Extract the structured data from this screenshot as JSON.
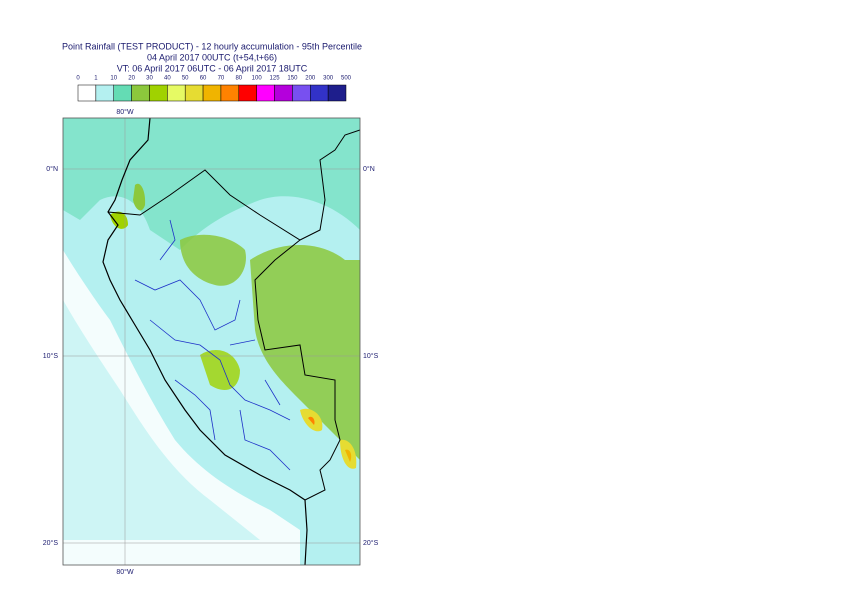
{
  "header": {
    "lines": [
      "Point Rainfall (TEST PRODUCT) - 12 hourly accumulation - 95th Percentile",
      "04 April 2017 00UTC (t+54,t+66)",
      "VT: 06 April 2017 06UTC - 06 April 2017 18UTC"
    ]
  },
  "legend": {
    "ticks": [
      0,
      1,
      10,
      20,
      30,
      40,
      50,
      60,
      70,
      80,
      100,
      125,
      150,
      200,
      300,
      500
    ],
    "colors": [
      "#ffffff",
      "#b4f0f0",
      "#64dcb4",
      "#8cc83c",
      "#a0d200",
      "#e6fa64",
      "#e6dc32",
      "#f0b400",
      "#ff8200",
      "#ff0000",
      "#ff00ff",
      "#b400dc",
      "#7850f0",
      "#3232c8",
      "#1e1e8c",
      "#0a0a46"
    ]
  },
  "map": {
    "left_labels": [
      "0°N",
      "10°S",
      "20°S"
    ],
    "right_labels": [
      "0°N",
      "10°S",
      "20°S"
    ],
    "top_labels": [
      "80°W"
    ],
    "bottom_labels": [
      "80°W"
    ]
  }
}
